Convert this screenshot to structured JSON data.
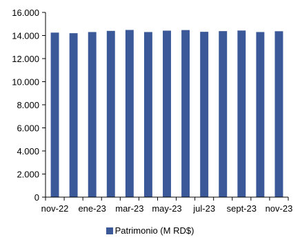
{
  "chart_data": {
    "type": "bar",
    "categories": [
      "nov-22",
      "dic-22",
      "ene-23",
      "feb-23",
      "mar-23",
      "abr-23",
      "may-23",
      "jun-23",
      "jul-23",
      "ago-23",
      "sept-23",
      "oct-23",
      "nov-23"
    ],
    "x_tick_labels": [
      "nov-22",
      "",
      "ene-23",
      "",
      "mar-23",
      "",
      "may-23",
      "",
      "jul-23",
      "",
      "sept-23",
      "",
      "nov-23"
    ],
    "series": [
      {
        "name": "Patrimonio (M RD$)",
        "color": "#3b5998",
        "values": [
          14250,
          14200,
          14300,
          14400,
          14480,
          14300,
          14420,
          14470,
          14320,
          14380,
          14430,
          14300,
          14370
        ]
      }
    ],
    "ylim": [
      0,
      16000
    ],
    "y_ticks": [
      0,
      2000,
      4000,
      6000,
      8000,
      10000,
      12000,
      14000,
      16000
    ],
    "y_tick_labels": [
      "0",
      "2.000",
      "4.000",
      "6.000",
      "8.000",
      "10.000",
      "12.000",
      "14.000",
      "16.000"
    ],
    "grid": false,
    "legend_position": "bottom"
  }
}
